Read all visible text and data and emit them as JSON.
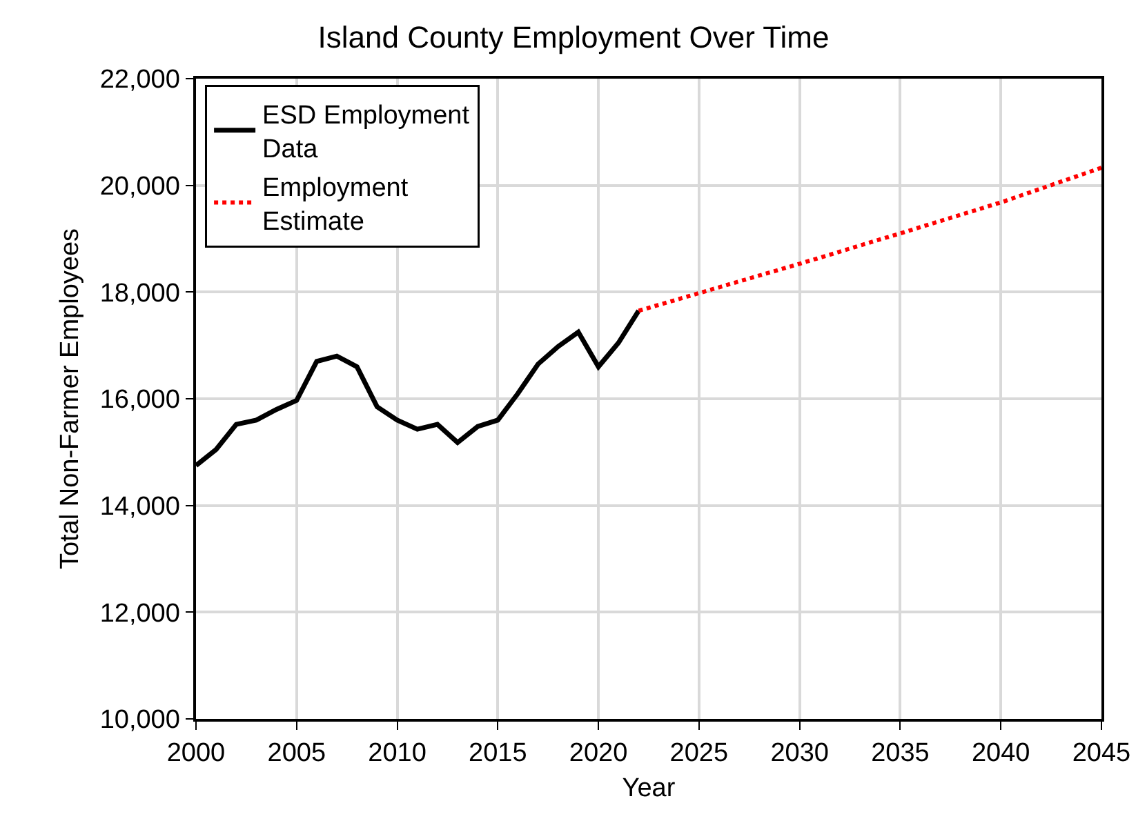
{
  "chart_data": {
    "type": "line",
    "title": "Island County Employment Over Time",
    "xlabel": "Year",
    "ylabel": "Total Non-Farmer Employees",
    "xlim": [
      2000,
      2045
    ],
    "xticks": [
      2000,
      2005,
      2010,
      2015,
      2020,
      2025,
      2030,
      2035,
      2040,
      2045
    ],
    "ylim": [
      10000,
      22000
    ],
    "yticks": [
      {
        "value": 10000,
        "label": "10,000"
      },
      {
        "value": 12000,
        "label": "12,000"
      },
      {
        "value": 14000,
        "label": "14,000"
      },
      {
        "value": 16000,
        "label": "16,000"
      },
      {
        "value": 18000,
        "label": "18,000"
      },
      {
        "value": 20000,
        "label": "20,000"
      },
      {
        "value": 22000,
        "label": "22,000"
      }
    ],
    "grid": true,
    "legend": "top left",
    "marker": "none",
    "series": [
      {
        "name": "ESD Employment Data",
        "color": "#000000",
        "line_style": "solid",
        "x": [
          2000,
          2001,
          2002,
          2003,
          2004,
          2005,
          2006,
          2007,
          2008,
          2009,
          2010,
          2011,
          2012,
          2013,
          2014,
          2015,
          2016,
          2017,
          2018,
          2019,
          2020,
          2021,
          2022
        ],
        "values": [
          14750,
          15050,
          15520,
          15600,
          15800,
          15970,
          16700,
          16800,
          16600,
          15850,
          15600,
          15430,
          15520,
          15180,
          15480,
          15600,
          16100,
          16650,
          16980,
          17250,
          16600,
          17050,
          17650
        ]
      },
      {
        "name": "Employment Estimate",
        "color": "#ff0000",
        "line_style": "dotted",
        "x": [
          2022,
          2025,
          2030,
          2035,
          2040,
          2045
        ],
        "values": [
          17650,
          17980,
          18530,
          19100,
          19680,
          20330
        ]
      }
    ]
  }
}
